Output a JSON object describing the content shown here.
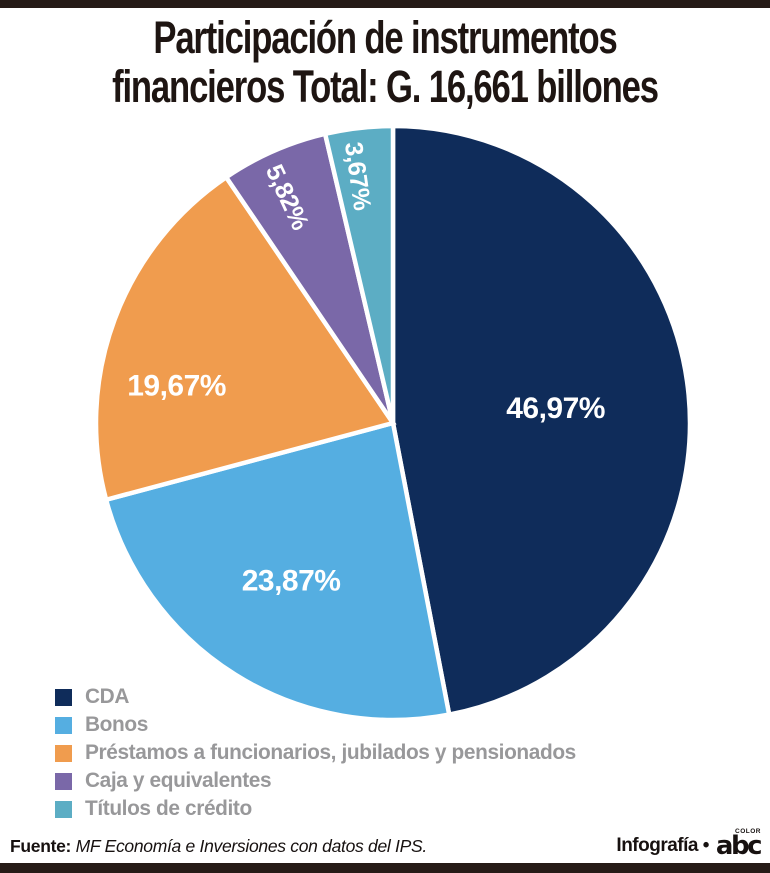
{
  "page": {
    "title_line1": "Participación de instrumentos",
    "title_line2": "financieros Total: G. 16,661 billones"
  },
  "chart_data": {
    "type": "pie",
    "title": "Participación de instrumentos financieros Total: G. 16,661 billones",
    "total_label": "G. 16,661 billones",
    "start_angle_deg": 0,
    "direction": "clockwise",
    "legend_position": "bottom-left",
    "slices": [
      {
        "id": "cda",
        "label": "CDA",
        "value": 46.97,
        "display": "46,97%",
        "color": "#0f2c5a",
        "label_r": 0.55,
        "rotate": false
      },
      {
        "id": "bonos",
        "label": "Bonos",
        "value": 23.87,
        "display": "23,87%",
        "color": "#55aee1",
        "label_r": 0.63,
        "label_angle": 213,
        "rotate": false
      },
      {
        "id": "prestamos",
        "label": "Préstamos a funcionarios, jubilados y pensionados",
        "value": 19.67,
        "display": "19,67%",
        "color": "#f09c4e",
        "label_r": 0.74,
        "label_angle": 280,
        "rotate": false
      },
      {
        "id": "caja",
        "label": "Caja y equivalentes",
        "value": 5.82,
        "display": "5,82%",
        "color": "#7a68a8",
        "label_r": 0.84,
        "label_angle": 335,
        "rotate": true
      },
      {
        "id": "titulos",
        "label": "Títulos de crédito",
        "value": 3.67,
        "display": "3,67%",
        "color": "#5cadc4",
        "label_r": 0.84,
        "label_angle": 352,
        "rotate": true
      }
    ]
  },
  "footer": {
    "fuente_label": "Fuente:",
    "fuente_text": "MF Economía e Inversiones con datos del IPS.",
    "credit": "Infografía •",
    "logo_text": "abc",
    "logo_small": "COLOR"
  },
  "colors": {
    "bar": "#261b17",
    "title_text": "#1e1512",
    "legend_text": "#98989a",
    "slice_separator": "#ffffff"
  }
}
